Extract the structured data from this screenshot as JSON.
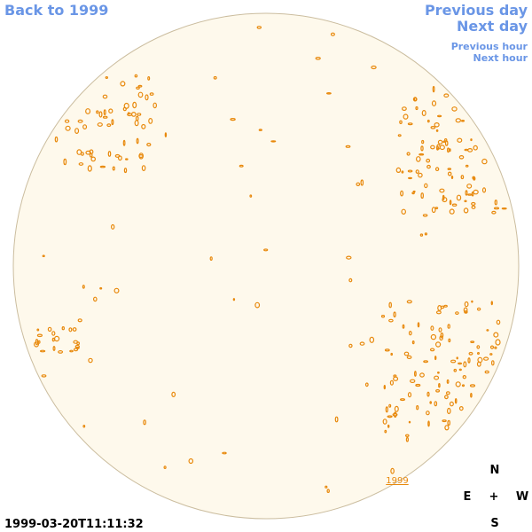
{
  "nav": {
    "back": "Back to 1999",
    "previous_day": "Previous day",
    "next_day": "Next day",
    "previous_hour": "Previous hour",
    "next_hour": "Next hour"
  },
  "compass": {
    "north": "N",
    "east": "E",
    "center": "+",
    "west": "W",
    "south": "S"
  },
  "timestamp": "1999-03-20T11:11:32",
  "year_link": "1999"
}
